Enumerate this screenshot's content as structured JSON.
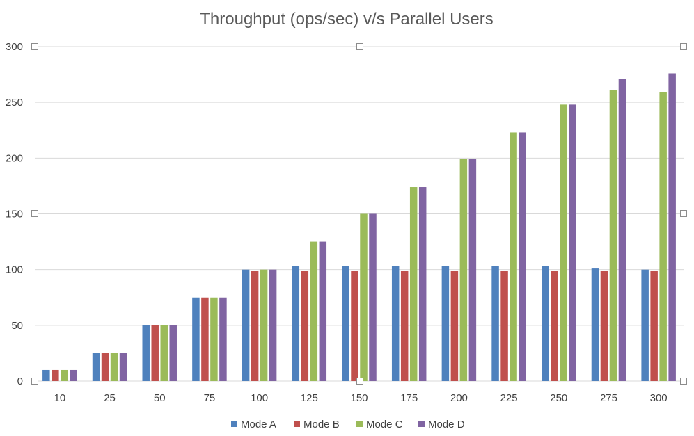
{
  "chart_data": {
    "type": "bar",
    "title": "Throughput (ops/sec) v/s Parallel Users",
    "xlabel": "",
    "ylabel": "",
    "categories": [
      "10",
      "25",
      "50",
      "75",
      "100",
      "125",
      "150",
      "175",
      "200",
      "225",
      "250",
      "275",
      "300"
    ],
    "ylim": [
      0,
      300
    ],
    "yticks": [
      0,
      50,
      100,
      150,
      200,
      250,
      300
    ],
    "grid": true,
    "legend_position": "bottom",
    "series": [
      {
        "name": "Mode A",
        "color": "#4f81bd",
        "values": [
          10,
          25,
          50,
          75,
          100,
          103,
          103,
          103,
          103,
          103,
          103,
          101,
          100
        ]
      },
      {
        "name": "Mode B",
        "color": "#c0504d",
        "values": [
          10,
          25,
          50,
          75,
          99,
          99,
          99,
          99,
          99,
          99,
          99,
          99,
          99
        ]
      },
      {
        "name": "Mode C",
        "color": "#9bbb59",
        "values": [
          10,
          25,
          50,
          75,
          100,
          125,
          150,
          174,
          199,
          223,
          248,
          261,
          259
        ]
      },
      {
        "name": "Mode D",
        "color": "#8064a2",
        "values": [
          10,
          25,
          50,
          75,
          100,
          125,
          150,
          174,
          199,
          223,
          248,
          271,
          276
        ]
      }
    ]
  }
}
